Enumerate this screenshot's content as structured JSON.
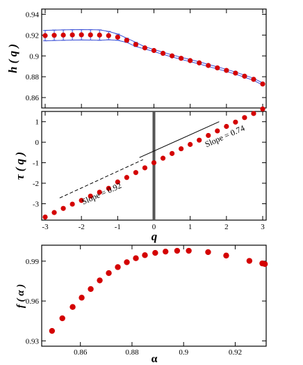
{
  "chart_data": [
    {
      "type": "scatter",
      "ylabel": "h ( q )",
      "xlim": [
        -3,
        3
      ],
      "ylim": [
        0.85,
        0.945
      ],
      "yticks": [
        "0.86",
        "0.88",
        "0.9",
        "0.92",
        "0.94"
      ],
      "marker_color": "#d40000",
      "errorbar_color": "#3a4fd6",
      "series": [
        {
          "x": [
            -3,
            -2.75,
            -2.5,
            -2.25,
            -2,
            -1.75,
            -1.5,
            -1.25,
            -1,
            -0.75,
            -0.5,
            -0.25,
            0,
            0.25,
            0.5,
            0.75,
            1,
            1.25,
            1.5,
            1.75,
            2,
            2.25,
            2.5,
            2.75,
            3
          ],
          "y": [
            0.9195,
            0.9198,
            0.92,
            0.9202,
            0.9203,
            0.9202,
            0.92,
            0.9195,
            0.918,
            0.915,
            0.911,
            0.9077,
            0.9052,
            0.9025,
            0.9,
            0.8977,
            0.8955,
            0.8933,
            0.8908,
            0.8885,
            0.8861,
            0.8835,
            0.8805,
            0.8775,
            0.873
          ],
          "err": [
            0.005,
            0.005,
            0.005,
            0.005,
            0.005,
            0.005,
            0.005,
            0.004,
            0.003,
            0.002,
            0.002,
            0.001,
            0.001,
            0.001,
            0.001,
            0.001,
            0.001,
            0.001,
            0.001,
            0.001,
            0.001,
            0.001,
            0.001,
            0.001,
            0.001
          ]
        }
      ]
    },
    {
      "type": "scatter",
      "xlabel": "q",
      "ylabel": "τ ( q )",
      "xlim": [
        -3,
        3
      ],
      "ylim": [
        -3.8,
        1.5
      ],
      "xticks": [
        "-3",
        "-2",
        "-1",
        "0",
        "1",
        "2",
        "3"
      ],
      "yticks": [
        "-3",
        "-2",
        "-1",
        "0",
        "1"
      ],
      "marker_color": "#d40000",
      "series": [
        {
          "x": [
            -3,
            -2.75,
            -2.5,
            -2.25,
            -2,
            -1.75,
            -1.5,
            -1.25,
            -1,
            -0.75,
            -0.5,
            -0.25,
            0,
            0.25,
            0.5,
            0.75,
            1,
            1.25,
            1.5,
            1.75,
            2,
            2.25,
            2.5,
            2.75,
            3
          ],
          "y": [
            -3.65,
            -3.43,
            -3.23,
            -3.02,
            -2.84,
            -2.63,
            -2.44,
            -2.25,
            -1.94,
            -1.72,
            -1.48,
            -1.25,
            -1.0,
            -0.78,
            -0.55,
            -0.32,
            -0.11,
            0.1,
            0.33,
            0.55,
            0.77,
            0.98,
            1.2,
            1.4,
            1.62
          ]
        }
      ],
      "annotations": [
        {
          "text": "Slope = 0.92",
          "x": -1.95,
          "y": -3.05,
          "angle": -24
        },
        {
          "text": "Slope = 0.74",
          "x": 1.45,
          "y": -0.25,
          "angle": -24
        }
      ],
      "ref_lines": [
        {
          "style": "dashed",
          "x": [
            -2.6,
            -0.3
          ],
          "y": [
            -2.72,
            -0.85
          ]
        },
        {
          "style": "solid",
          "x": [
            -0.4,
            1.8
          ],
          "y": [
            -0.75,
            1.0
          ]
        }
      ],
      "vline_x": 0
    },
    {
      "type": "scatter",
      "xlabel": "α",
      "ylabel": "f ( α )",
      "xlim": [
        0.845,
        0.932
      ],
      "ylim": [
        0.926,
        1.002
      ],
      "xticks": [
        "0.86",
        "0.88",
        "0.9",
        "0.92"
      ],
      "xtick_values": [
        0.86,
        0.88,
        0.9,
        0.92
      ],
      "yticks": [
        "0.93",
        "0.96",
        "0.99"
      ],
      "ytick_values": [
        0.93,
        0.96,
        0.99
      ],
      "marker_color": "#d40000",
      "series": [
        {
          "x": [
            0.849,
            0.853,
            0.857,
            0.8605,
            0.864,
            0.8675,
            0.871,
            0.8745,
            0.878,
            0.8815,
            0.885,
            0.889,
            0.893,
            0.8975,
            0.902,
            0.9095,
            0.9165,
            0.9255,
            0.9305,
            0.9315
          ],
          "y": [
            0.9375,
            0.947,
            0.9555,
            0.9625,
            0.969,
            0.9755,
            0.981,
            0.9855,
            0.9892,
            0.9922,
            0.9945,
            0.9962,
            0.9972,
            0.9978,
            0.9978,
            0.9968,
            0.9942,
            0.9902,
            0.9883,
            0.9878
          ]
        }
      ]
    }
  ]
}
